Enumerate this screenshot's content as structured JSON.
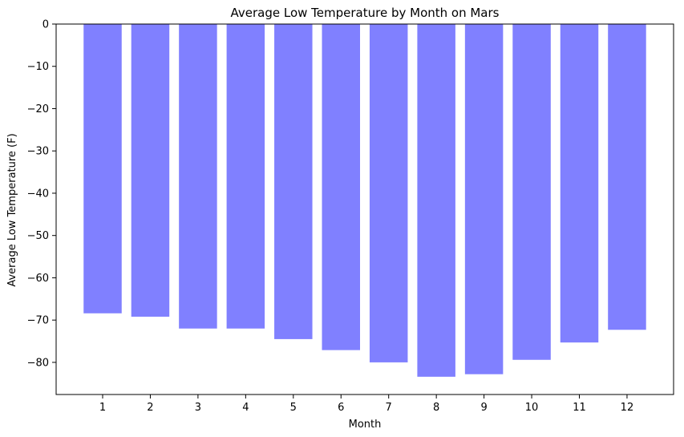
{
  "chart_data": {
    "type": "bar",
    "title": "Average Low Temperature by Month on Mars",
    "xlabel": "Month",
    "ylabel": "Average Low Temperature (F)",
    "categories": [
      "1",
      "2",
      "3",
      "4",
      "5",
      "6",
      "7",
      "8",
      "9",
      "10",
      "11",
      "12"
    ],
    "values": [
      -68.4,
      -69.2,
      -72.0,
      -72.0,
      -74.5,
      -77.1,
      -80.0,
      -83.4,
      -82.8,
      -79.4,
      -75.3,
      -72.3
    ],
    "yticks": [
      0,
      -10,
      -20,
      -30,
      -40,
      -50,
      -60,
      -70,
      -80
    ],
    "ytick_labels": [
      "0",
      "−10",
      "−20",
      "−30",
      "−40",
      "−50",
      "−60",
      "−70",
      "−80"
    ],
    "ylim": [
      -87.6,
      0
    ],
    "bar_color": "#8080ff",
    "grid": false,
    "legend": "none"
  }
}
